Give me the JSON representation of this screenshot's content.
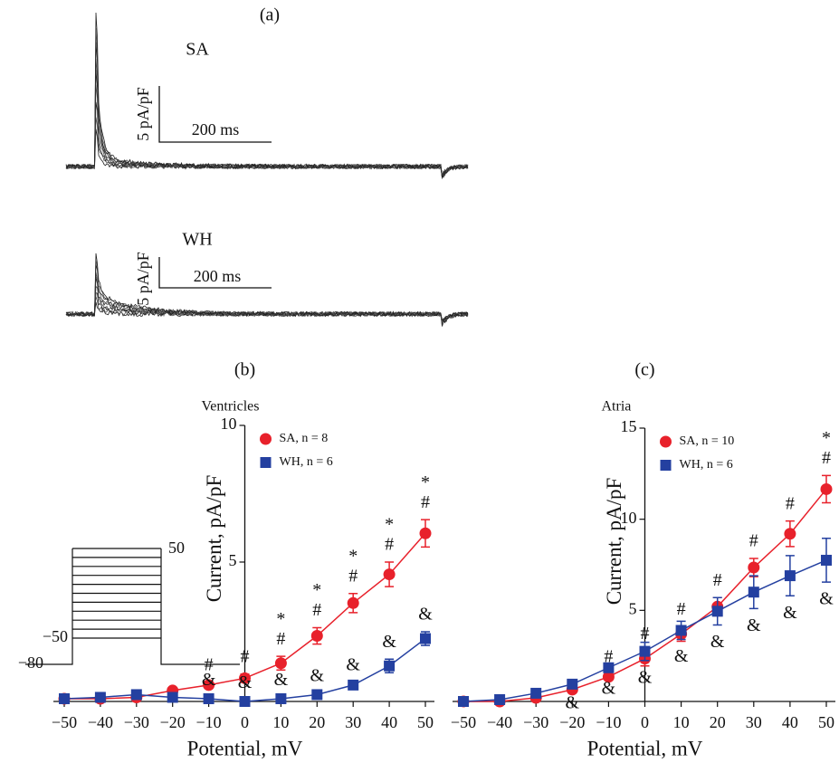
{
  "figure": {
    "label": "(a)",
    "traces": [
      {
        "name": "SA",
        "scale_y": "5 pA/pF",
        "scale_x": "200 ms"
      },
      {
        "name": "WH",
        "scale_y": "5 pA/pF",
        "scale_x": "200 ms"
      }
    ]
  },
  "chart_data": [
    {
      "type": "line",
      "panel": "(b)",
      "title": "Ventricles",
      "x_label": "Potential, mV",
      "y_label": "Current, pA/pF",
      "x": [
        -50,
        -40,
        -30,
        -20,
        -10,
        0,
        10,
        20,
        30,
        40,
        50
      ],
      "xlim": [
        -50,
        50
      ],
      "xticks": [
        {
          "value": -50,
          "label": "−50"
        },
        {
          "value": -40,
          "label": "−40"
        },
        {
          "value": -30,
          "label": "−30"
        },
        {
          "value": -20,
          "label": "−20"
        },
        {
          "value": -10,
          "label": "−10"
        },
        0,
        10,
        20,
        30,
        40,
        50
      ],
      "ylim": [
        -0.1,
        10
      ],
      "yticks": [
        5,
        10
      ],
      "protocol_labels": [
        "50",
        "−50",
        "−80"
      ],
      "series": [
        {
          "name": "SA, n = 8",
          "color": "#e8212b",
          "marker": "circle",
          "values": [
            0,
            0,
            0.05,
            0.3,
            0.5,
            0.75,
            1.3,
            2.3,
            3.5,
            4.55,
            6.05
          ],
          "errors": [
            0.05,
            0.05,
            0.05,
            0.1,
            0.1,
            0.15,
            0.25,
            0.3,
            0.35,
            0.45,
            0.5
          ],
          "marks": [
            null,
            null,
            null,
            null,
            [
              "#"
            ],
            [
              "#"
            ],
            [
              "*",
              "#"
            ],
            [
              "*",
              "#"
            ],
            [
              "*",
              "#"
            ],
            [
              "*",
              "#"
            ],
            [
              "*",
              "#"
            ]
          ],
          "marks_position": "above"
        },
        {
          "name": "WH, n = 6",
          "color": "#2440a0",
          "marker": "square",
          "values": [
            0,
            0.05,
            0.15,
            0.05,
            0,
            -0.1,
            0,
            0.15,
            0.5,
            1.2,
            2.2
          ],
          "errors": [
            0.05,
            0.05,
            0.05,
            0.05,
            0.05,
            0.05,
            0.05,
            0.05,
            0.1,
            0.25,
            0.25
          ],
          "marks": [
            null,
            null,
            null,
            null,
            [
              "&"
            ],
            [
              "&"
            ],
            [
              "&"
            ],
            [
              "&"
            ],
            [
              "&"
            ],
            [
              "&"
            ],
            [
              "&"
            ]
          ],
          "marks_position": "above"
        }
      ]
    },
    {
      "type": "line",
      "panel": "(c)",
      "title": "Atria",
      "x_label": "Potential, mV",
      "y_label": "Current, pA/pF",
      "x": [
        -50,
        -40,
        -30,
        -20,
        -10,
        0,
        10,
        20,
        30,
        40,
        50
      ],
      "xlim": [
        -50,
        50
      ],
      "xticks": [
        {
          "value": -50,
          "label": "−50"
        },
        {
          "value": -40,
          "label": "−40"
        },
        {
          "value": -30,
          "label": "−30"
        },
        {
          "value": -20,
          "label": "−20"
        },
        {
          "value": -10,
          "label": "−10"
        },
        0,
        10,
        20,
        30,
        40,
        50
      ],
      "ylim": [
        0,
        15
      ],
      "yticks": [
        5,
        10,
        15
      ],
      "series": [
        {
          "name": "SA, n = 10",
          "color": "#e8212b",
          "marker": "circle",
          "values": [
            0,
            0,
            0.2,
            0.65,
            1.35,
            2.35,
            3.7,
            5.2,
            7.35,
            9.2,
            11.65
          ],
          "errors": [
            0.1,
            0.1,
            0.1,
            0.15,
            0.15,
            0.4,
            0.4,
            0.5,
            0.5,
            0.7,
            0.75
          ],
          "marks": [
            null,
            null,
            null,
            null,
            [
              "#"
            ],
            [
              "#"
            ],
            [
              "#"
            ],
            [
              "#"
            ],
            [
              "#"
            ],
            [
              "#"
            ],
            [
              "*",
              "#"
            ]
          ],
          "marks_position": "above"
        },
        {
          "name": "WH, n = 6",
          "color": "#2440a0",
          "marker": "square",
          "values": [
            0,
            0.1,
            0.45,
            0.95,
            1.85,
            2.75,
            3.9,
            4.95,
            6,
            6.9,
            7.75
          ],
          "errors": [
            0.05,
            0.05,
            0.1,
            0.1,
            0.2,
            0.5,
            0.5,
            0.75,
            0.9,
            1.1,
            1.2
          ],
          "marks": [
            null,
            null,
            null,
            [
              "&"
            ],
            [
              "&"
            ],
            [
              "&"
            ],
            [
              "&"
            ],
            [
              "&"
            ],
            [
              "&"
            ],
            [
              "&"
            ],
            [
              "&"
            ]
          ],
          "marks_position": "below"
        }
      ]
    }
  ]
}
